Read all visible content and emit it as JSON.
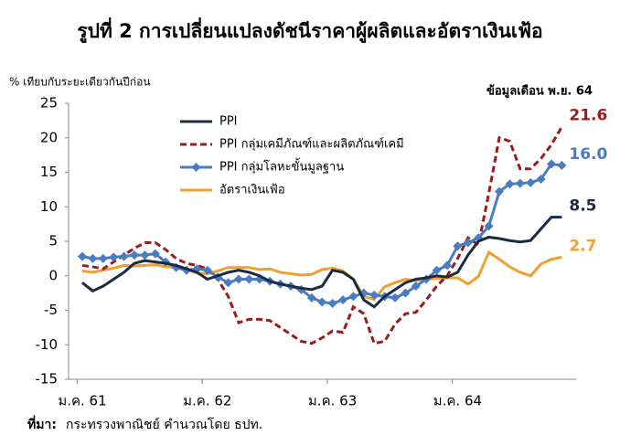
{
  "chart_data": {
    "type": "line",
    "title": "รูปที่ 2 การเปลี่ยนแปลงดัชนีราคาผู้ผลิตและอัตราเงินเฟ้อ",
    "y_label": "% เทียบกับระยะเดียวกันปีก่อน",
    "annotation": "ข้อมูลเดือน พ.ย. 64",
    "source_label": "ที่มา:",
    "source_text": "กระทรวงพาณิชย์ คำนวณโดย ธปท.",
    "categories": [
      "ม.ค. 61",
      null,
      null,
      null,
      null,
      null,
      null,
      null,
      null,
      null,
      null,
      null,
      "ม.ค. 62",
      null,
      null,
      null,
      null,
      null,
      null,
      null,
      null,
      null,
      null,
      null,
      "ม.ค. 63",
      null,
      null,
      null,
      null,
      null,
      null,
      null,
      null,
      null,
      null,
      null,
      "ม.ค. 64",
      null,
      null,
      null,
      null,
      null,
      null,
      null,
      null,
      null,
      null
    ],
    "ylim": [
      -15,
      25
    ],
    "yticks": [
      -15,
      -10,
      -5,
      0,
      5,
      10,
      15,
      20,
      25
    ],
    "series": [
      {
        "name": "PPI",
        "color": "#1b2b40",
        "style": "solid",
        "end_label": "8.5",
        "values": [
          -1.0,
          -2.2,
          -1.5,
          -0.5,
          0.5,
          1.8,
          2.2,
          2.0,
          1.8,
          1.5,
          1.0,
          0.5,
          -0.5,
          0.0,
          0.5,
          0.8,
          0.5,
          0.0,
          -0.8,
          -1.2,
          -1.5,
          -1.8,
          -2.0,
          -1.5,
          0.8,
          0.5,
          -0.5,
          -3.5,
          -4.5,
          -3.0,
          -2.0,
          -1.0,
          -0.5,
          -0.3,
          0.0,
          -0.2,
          0.5,
          3.0,
          5.0,
          5.6,
          5.4,
          5.1,
          4.9,
          5.1,
          6.8,
          8.5,
          8.5
        ]
      },
      {
        "name": "PPI กลุ่มเคมีภัณฑ์และผลิตภัณฑ์เคมี",
        "color": "#9b1c1c",
        "style": "dashed",
        "end_label": "21.6",
        "values": [
          1.5,
          1.3,
          1.0,
          2.0,
          3.0,
          4.0,
          4.8,
          4.8,
          3.8,
          2.5,
          1.8,
          1.5,
          1.0,
          -0.5,
          -3.0,
          -6.8,
          -6.3,
          -6.3,
          -6.5,
          -7.5,
          -8.5,
          -9.5,
          -9.8,
          -9.0,
          -8.0,
          -8.2,
          -4.5,
          -5.5,
          -9.8,
          -9.5,
          -7.0,
          -5.5,
          -5.3,
          -3.5,
          -1.5,
          0.0,
          2.5,
          5.5,
          4.5,
          12.0,
          20.0,
          19.5,
          15.5,
          15.5,
          17.0,
          19.0,
          21.6
        ]
      },
      {
        "name": "PPI กลุ่มโลหะขั้นมูลฐาน",
        "color": "#4a7cc0",
        "style": "marker",
        "end_label": "16.0",
        "values": [
          2.8,
          2.5,
          2.5,
          2.7,
          2.8,
          3.0,
          3.0,
          3.2,
          2.0,
          1.2,
          0.8,
          1.0,
          0.8,
          -0.2,
          -1.0,
          -0.5,
          -0.5,
          -0.5,
          -0.8,
          -1.2,
          -1.5,
          -2.0,
          -3.2,
          -3.8,
          -4.0,
          -3.5,
          -3.0,
          -2.5,
          -2.8,
          -3.0,
          -3.2,
          -2.5,
          -1.5,
          -0.5,
          0.8,
          1.5,
          4.3,
          4.8,
          5.5,
          7.2,
          12.2,
          13.3,
          13.4,
          13.5,
          14.0,
          16.2,
          16.0
        ]
      },
      {
        "name": "อัตราเงินเฟ้อ",
        "color": "#f0a030",
        "style": "solid",
        "end_label": "2.7",
        "values": [
          0.7,
          0.5,
          0.8,
          1.1,
          1.5,
          1.4,
          1.5,
          1.6,
          1.3,
          1.2,
          0.9,
          0.4,
          0.3,
          0.7,
          1.2,
          1.2,
          1.2,
          0.9,
          1.0,
          0.5,
          0.3,
          0.1,
          0.2,
          0.9,
          1.1,
          0.7,
          -0.5,
          -3.0,
          -3.4,
          -1.6,
          -1.0,
          -0.5,
          -0.7,
          -0.5,
          -0.4,
          -0.3,
          -0.3,
          -1.2,
          -0.1,
          3.4,
          2.4,
          1.3,
          0.5,
          0.0,
          1.7,
          2.4,
          2.7
        ]
      }
    ]
  }
}
